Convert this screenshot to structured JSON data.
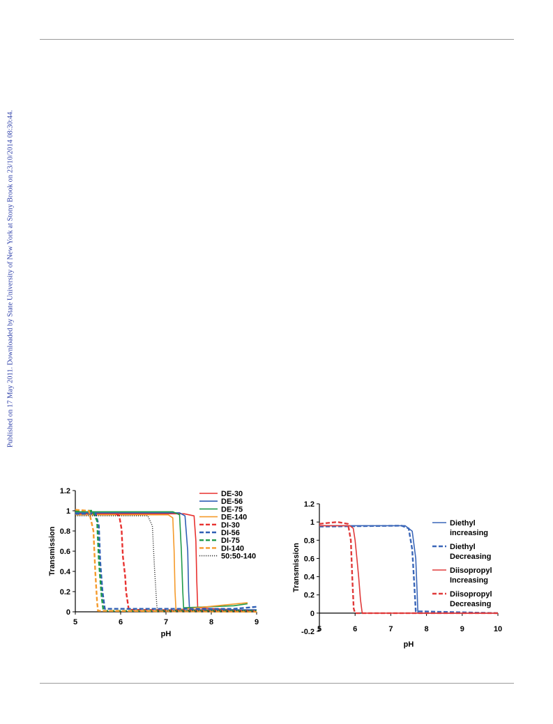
{
  "side_note": "Published on 17 May 2011. Downloaded by State University of New York at Stony Brook on 23/10/2014 08:30:44.",
  "chart_data": [
    {
      "type": "line",
      "title": "",
      "xlabel": "pH",
      "ylabel": "Transmission",
      "xlim": [
        5,
        9
      ],
      "ylim": [
        0,
        1.2
      ],
      "xticks": [
        "5",
        "6",
        "7",
        "8",
        "9"
      ],
      "yticks": [
        "0",
        "0.2",
        "0.4",
        "0.6",
        "0.8",
        "1",
        "1.2"
      ],
      "grid": false,
      "legend": "top-right",
      "series": [
        {
          "name": "DE-30",
          "color": "#e8312f",
          "style": "solid",
          "points": [
            [
              5,
              0.97
            ],
            [
              7.4,
              0.97
            ],
            [
              7.62,
              0.95
            ],
            [
              7.66,
              0.7
            ],
            [
              7.68,
              0.3
            ],
            [
              7.7,
              0.04
            ],
            [
              8.9,
              0.01
            ]
          ]
        },
        {
          "name": "DE-56",
          "color": "#2f5fb5",
          "style": "solid",
          "points": [
            [
              5,
              0.98
            ],
            [
              7.3,
              0.98
            ],
            [
              7.42,
              0.95
            ],
            [
              7.48,
              0.6
            ],
            [
              7.5,
              0.2
            ],
            [
              7.52,
              0.02
            ],
            [
              9,
              0.02
            ]
          ]
        },
        {
          "name": "DE-75",
          "color": "#1f9a4a",
          "style": "solid",
          "points": [
            [
              5,
              0.99
            ],
            [
              7.15,
              0.99
            ],
            [
              7.3,
              0.96
            ],
            [
              7.34,
              0.6
            ],
            [
              7.37,
              0.2
            ],
            [
              7.39,
              0.04
            ],
            [
              8.5,
              0.06
            ],
            [
              8.8,
              0.08
            ]
          ]
        },
        {
          "name": "DE-140",
          "color": "#f59a2a",
          "style": "solid",
          "points": [
            [
              5,
              0.96
            ],
            [
              7.05,
              0.96
            ],
            [
              7.15,
              0.93
            ],
            [
              7.18,
              0.6
            ],
            [
              7.2,
              0.2
            ],
            [
              7.22,
              0.02
            ],
            [
              8.8,
              0.09
            ]
          ]
        },
        {
          "name": "DI-30",
          "color": "#e8312f",
          "style": "dashed",
          "points": [
            [
              5.9,
              0.97
            ],
            [
              5.97,
              0.95
            ],
            [
              6.02,
              0.82
            ],
            [
              6.05,
              0.55
            ],
            [
              6.1,
              0.35
            ],
            [
              6.12,
              0.2
            ],
            [
              6.18,
              0.02
            ],
            [
              9,
              0.01
            ]
          ]
        },
        {
          "name": "DI-56",
          "color": "#2f5fb5",
          "style": "dashed",
          "points": [
            [
              5,
              0.97
            ],
            [
              5.45,
              0.97
            ],
            [
              5.52,
              0.85
            ],
            [
              5.55,
              0.5
            ],
            [
              5.6,
              0.2
            ],
            [
              5.65,
              0.03
            ],
            [
              8.5,
              0.03
            ],
            [
              9,
              0.05
            ]
          ]
        },
        {
          "name": "DI-75",
          "color": "#1f9a4a",
          "style": "dashed",
          "points": [
            [
              5,
              1.0
            ],
            [
              5.38,
              1.0
            ],
            [
              5.48,
              0.9
            ],
            [
              5.52,
              0.5
            ],
            [
              5.58,
              0.15
            ],
            [
              5.62,
              0.01
            ],
            [
              9,
              0.01
            ]
          ]
        },
        {
          "name": "DI-140",
          "color": "#f59a2a",
          "style": "dashed",
          "points": [
            [
              5,
              1.01
            ],
            [
              5.3,
              1.0
            ],
            [
              5.4,
              0.8
            ],
            [
              5.44,
              0.4
            ],
            [
              5.48,
              0.1
            ],
            [
              5.5,
              0.01
            ],
            [
              9,
              0.0
            ]
          ]
        },
        {
          "name": "50:50-140",
          "color": "#333333",
          "style": "dotted",
          "points": [
            [
              5,
              0.95
            ],
            [
              6.6,
              0.95
            ],
            [
              6.7,
              0.85
            ],
            [
              6.75,
              0.4
            ],
            [
              6.8,
              0.05
            ],
            [
              6.82,
              0.01
            ],
            [
              9,
              0.01
            ]
          ]
        }
      ]
    },
    {
      "type": "line",
      "title": "",
      "xlabel": "pH",
      "ylabel": "Transmission",
      "xlim": [
        5,
        10
      ],
      "ylim": [
        -0.2,
        1.2
      ],
      "xticks": [
        "5",
        "6",
        "7",
        "8",
        "9",
        "10"
      ],
      "yticks": [
        "-0.2",
        "0",
        "0.2",
        "0.4",
        "0.6",
        "0.8",
        "1",
        "1.2"
      ],
      "grid": false,
      "legend": "right",
      "series": [
        {
          "name": "Diethyl increasing",
          "legend_lines": [
            "Diethyl",
            "increasing"
          ],
          "color": "#3a66b8",
          "style": "solid",
          "points": [
            [
              5,
              0.96
            ],
            [
              6.8,
              0.96
            ],
            [
              7.4,
              0.96
            ],
            [
              7.6,
              0.9
            ],
            [
              7.7,
              0.6
            ],
            [
              7.74,
              0.2
            ],
            [
              7.76,
              0.0
            ],
            [
              10,
              0.0
            ]
          ]
        },
        {
          "name": "Diethyl Decreasing",
          "legend_lines": [
            "Diethyl",
            "Decreasing"
          ],
          "color": "#3a66b8",
          "style": "dashed",
          "points": [
            [
              5,
              0.95
            ],
            [
              7.3,
              0.96
            ],
            [
              7.5,
              0.93
            ],
            [
              7.6,
              0.7
            ],
            [
              7.66,
              0.3
            ],
            [
              7.7,
              0.02
            ],
            [
              10,
              0.0
            ]
          ]
        },
        {
          "name": "Diisopropyl Increasing",
          "legend_lines": [
            "Diisopropyl",
            "Increasing"
          ],
          "color": "#e03a3a",
          "style": "solid",
          "points": [
            [
              5,
              0.96
            ],
            [
              5.85,
              0.96
            ],
            [
              5.95,
              0.93
            ],
            [
              6.0,
              0.8
            ],
            [
              6.05,
              0.6
            ],
            [
              6.1,
              0.4
            ],
            [
              6.15,
              0.15
            ],
            [
              6.2,
              0.0
            ],
            [
              10,
              0.0
            ]
          ]
        },
        {
          "name": "Diisopropyl Decreasing",
          "legend_lines": [
            "Diisopropyl",
            "Decreasing"
          ],
          "color": "#e03a3a",
          "style": "dashed",
          "points": [
            [
              5,
              0.98
            ],
            [
              5.5,
              1.0
            ],
            [
              5.8,
              0.98
            ],
            [
              5.88,
              0.8
            ],
            [
              5.92,
              0.4
            ],
            [
              5.96,
              0.05
            ],
            [
              6.0,
              0.0
            ],
            [
              10,
              0.0
            ]
          ]
        }
      ]
    }
  ]
}
